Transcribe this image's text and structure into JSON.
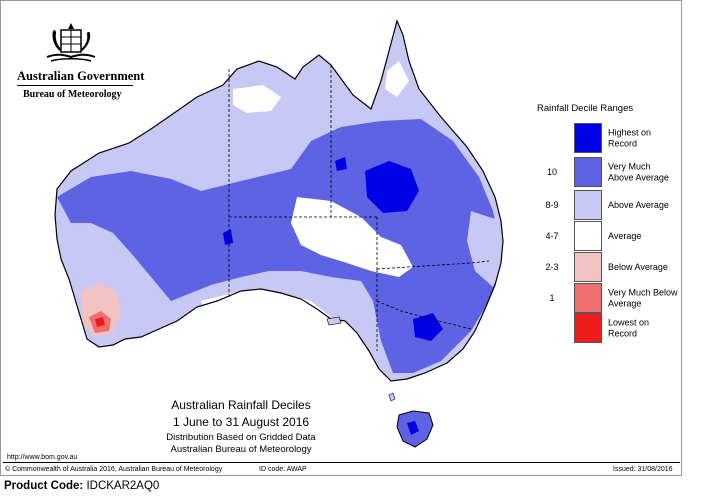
{
  "header": {
    "government": "Australian Government",
    "bureau": "Bureau of Meteorology"
  },
  "map": {
    "title": "Australian Rainfall Deciles",
    "dates": "1 June to 31 August 2016",
    "method": "Distribution Based on Gridded Data",
    "source": "Australian Bureau of Meteorology",
    "colors": {
      "highest_on_record": "#0000e6",
      "very_much_above": "#5e63e3",
      "above": "#c7c8f4",
      "average": "#ffffff",
      "below": "#f5c2c4",
      "very_much_below": "#ee6f70",
      "lowest_on_record": "#ee1c1c",
      "sea": "#ffffff",
      "outline": "#000000"
    }
  },
  "legend": {
    "title": "Rainfall Decile Ranges",
    "entries": [
      {
        "range": "",
        "label": "Highest on Record",
        "color": "#0000e6"
      },
      {
        "range": "10",
        "label": "Very Much Above Average",
        "color": "#5e63e3"
      },
      {
        "range": "8-9",
        "label": "Above Average",
        "color": "#c7c8f4"
      },
      {
        "range": "4-7",
        "label": "Average",
        "color": "#ffffff"
      },
      {
        "range": "2-3",
        "label": "Below Average",
        "color": "#f5c2c4"
      },
      {
        "range": "1",
        "label": "Very Much Below Average",
        "color": "#ee6f70"
      },
      {
        "range": "",
        "label": "Lowest on Record",
        "color": "#ee1c1c"
      }
    ]
  },
  "footer": {
    "url": "http://www.bom.gov.au",
    "copyright": "© Commonwealth of Australia 2016, Australian Bureau of Meteorology",
    "id_code": "ID code: AWAP",
    "issued": "Issued: 31/08/2016"
  },
  "product": {
    "label": "Product Code:",
    "code": "IDCKAR2AQ0"
  }
}
